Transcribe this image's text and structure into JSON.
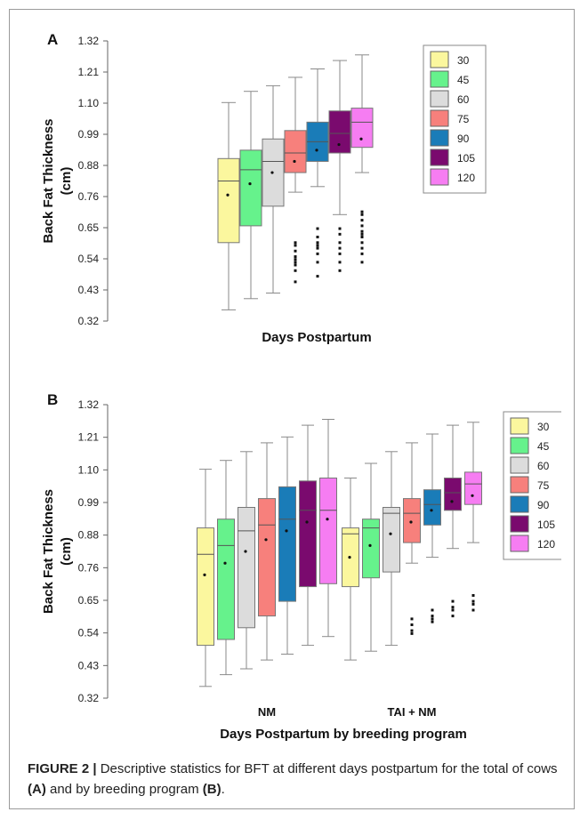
{
  "chart_data": [
    {
      "type": "boxplot",
      "panel_label": "A",
      "ylabel": [
        "Back Fat Thickness",
        "(cm)"
      ],
      "xlabel": "Days Postpartum",
      "yticks": [
        "1.32",
        "1.21",
        "1.10",
        "0.99",
        "0.88",
        "0.76",
        "0.65",
        "0.54",
        "0.43",
        "0.32"
      ],
      "ylim": [
        0.32,
        1.32
      ],
      "legend": [
        "30",
        "45",
        "60",
        "75",
        "90",
        "105",
        "120"
      ],
      "colors": [
        "#fbf79e",
        "#66f28c",
        "#dcdcdc",
        "#f7807c",
        "#1a7cb8",
        "#7a0a6e",
        "#f67df2"
      ],
      "groups": [
        {
          "label": "",
          "boxes": [
            {
              "name": "30",
              "min": 0.36,
              "q1": 0.6,
              "median": 0.82,
              "q3": 0.9,
              "max": 1.1,
              "mean": 0.77,
              "outliers": []
            },
            {
              "name": "45",
              "min": 0.4,
              "q1": 0.66,
              "median": 0.86,
              "q3": 0.93,
              "max": 1.14,
              "mean": 0.81,
              "outliers": []
            },
            {
              "name": "60",
              "min": 0.42,
              "q1": 0.73,
              "median": 0.89,
              "q3": 0.97,
              "max": 1.16,
              "mean": 0.85,
              "outliers": []
            },
            {
              "name": "75",
              "min": 0.78,
              "q1": 0.85,
              "median": 0.92,
              "q3": 1.0,
              "max": 1.19,
              "mean": 0.89,
              "outliers": [
                0.46,
                0.5,
                0.52,
                0.53,
                0.54,
                0.55,
                0.57,
                0.59,
                0.6
              ]
            },
            {
              "name": "90",
              "min": 0.8,
              "q1": 0.89,
              "median": 0.96,
              "q3": 1.03,
              "max": 1.22,
              "mean": 0.93,
              "outliers": [
                0.48,
                0.53,
                0.56,
                0.58,
                0.59,
                0.6,
                0.62,
                0.65
              ]
            },
            {
              "name": "105",
              "min": 0.7,
              "q1": 0.92,
              "median": 0.99,
              "q3": 1.07,
              "max": 1.25,
              "mean": 0.95,
              "outliers": [
                0.5,
                0.53,
                0.56,
                0.58,
                0.6,
                0.63,
                0.65
              ]
            },
            {
              "name": "120",
              "min": 0.85,
              "q1": 0.94,
              "median": 1.03,
              "q3": 1.08,
              "max": 1.27,
              "mean": 0.97,
              "outliers": [
                0.53,
                0.56,
                0.58,
                0.6,
                0.62,
                0.63,
                0.64,
                0.66,
                0.68,
                0.7,
                0.71
              ]
            }
          ]
        }
      ]
    },
    {
      "type": "boxplot",
      "panel_label": "B",
      "ylabel": [
        "Back Fat Thickness",
        "(cm)"
      ],
      "xlabel": "Days Postpartum by breeding program",
      "yticks": [
        "1.32",
        "1.21",
        "1.10",
        "0.99",
        "0.88",
        "0.76",
        "0.65",
        "0.54",
        "0.43",
        "0.32"
      ],
      "ylim": [
        0.32,
        1.32
      ],
      "legend": [
        "30",
        "45",
        "60",
        "75",
        "90",
        "105",
        "120"
      ],
      "colors": [
        "#fbf79e",
        "#66f28c",
        "#dcdcdc",
        "#f7807c",
        "#1a7cb8",
        "#7a0a6e",
        "#f67df2"
      ],
      "groups": [
        {
          "label": "NM",
          "boxes": [
            {
              "name": "30",
              "min": 0.36,
              "q1": 0.5,
              "median": 0.81,
              "q3": 0.9,
              "max": 1.1,
              "mean": 0.74,
              "outliers": []
            },
            {
              "name": "45",
              "min": 0.4,
              "q1": 0.52,
              "median": 0.84,
              "q3": 0.93,
              "max": 1.13,
              "mean": 0.78,
              "outliers": []
            },
            {
              "name": "60",
              "min": 0.42,
              "q1": 0.56,
              "median": 0.89,
              "q3": 0.97,
              "max": 1.16,
              "mean": 0.82,
              "outliers": []
            },
            {
              "name": "75",
              "min": 0.45,
              "q1": 0.6,
              "median": 0.91,
              "q3": 1.0,
              "max": 1.19,
              "mean": 0.86,
              "outliers": []
            },
            {
              "name": "90",
              "min": 0.47,
              "q1": 0.65,
              "median": 0.93,
              "q3": 1.04,
              "max": 1.21,
              "mean": 0.89,
              "outliers": []
            },
            {
              "name": "105",
              "min": 0.5,
              "q1": 0.7,
              "median": 0.96,
              "q3": 1.06,
              "max": 1.25,
              "mean": 0.92,
              "outliers": []
            },
            {
              "name": "120",
              "min": 0.53,
              "q1": 0.71,
              "median": 0.96,
              "q3": 1.07,
              "max": 1.27,
              "mean": 0.93,
              "outliers": []
            }
          ]
        },
        {
          "label": "TAI + NM",
          "boxes": [
            {
              "name": "30",
              "min": 0.45,
              "q1": 0.7,
              "median": 0.88,
              "q3": 0.9,
              "max": 1.07,
              "mean": 0.8,
              "outliers": []
            },
            {
              "name": "45",
              "min": 0.48,
              "q1": 0.73,
              "median": 0.9,
              "q3": 0.93,
              "max": 1.12,
              "mean": 0.84,
              "outliers": []
            },
            {
              "name": "60",
              "min": 0.5,
              "q1": 0.75,
              "median": 0.95,
              "q3": 0.97,
              "max": 1.16,
              "mean": 0.88,
              "outliers": []
            },
            {
              "name": "75",
              "min": 0.78,
              "q1": 0.85,
              "median": 0.95,
              "q3": 1.0,
              "max": 1.19,
              "mean": 0.92,
              "outliers": [
                0.54,
                0.55,
                0.57,
                0.59
              ]
            },
            {
              "name": "90",
              "min": 0.8,
              "q1": 0.91,
              "median": 0.98,
              "q3": 1.03,
              "max": 1.22,
              "mean": 0.96,
              "outliers": [
                0.58,
                0.59,
                0.6,
                0.62
              ]
            },
            {
              "name": "105",
              "min": 0.83,
              "q1": 0.96,
              "median": 1.02,
              "q3": 1.07,
              "max": 1.25,
              "mean": 0.99,
              "outliers": [
                0.6,
                0.62,
                0.63,
                0.65
              ]
            },
            {
              "name": "120",
              "min": 0.85,
              "q1": 0.98,
              "median": 1.05,
              "q3": 1.09,
              "max": 1.26,
              "mean": 1.01,
              "outliers": [
                0.62,
                0.64,
                0.65,
                0.67
              ]
            }
          ]
        }
      ]
    }
  ],
  "caption": {
    "figure_label": "FIGURE 2 |",
    "text_1": " Descriptive statistics for BFT at different days postpartum for the total of cows ",
    "bold_a": "(A)",
    "text_2": " and by breeding program ",
    "bold_b": "(B)",
    "text_3": "."
  }
}
